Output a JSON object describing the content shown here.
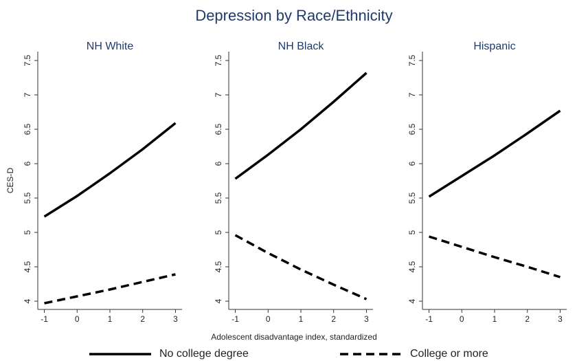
{
  "title": "Depression by Race/Ethnicity",
  "xlabel": "Adolescent disadvantage index, standardized",
  "chart_data": [
    {
      "type": "line",
      "title": "NH White",
      "ylabel": "CES-D",
      "x": [
        -1,
        0,
        1,
        2,
        3
      ],
      "xlim": [
        -1.2,
        3.2
      ],
      "xticks": [
        -1,
        0,
        1,
        2,
        3
      ],
      "ylim": [
        3.88,
        7.63
      ],
      "yticks": [
        4,
        4.5,
        5,
        5.5,
        6,
        6.5,
        7,
        7.5
      ],
      "series": [
        {
          "name": "No college degree",
          "color": "#000000",
          "style": "solid",
          "values": [
            5.23,
            5.53,
            5.86,
            6.21,
            6.59
          ]
        },
        {
          "name": "College or more",
          "color": "#000000",
          "style": "dashed",
          "values": [
            3.97,
            4.07,
            4.17,
            4.28,
            4.39
          ]
        }
      ]
    },
    {
      "type": "line",
      "title": "NH Black",
      "x": [
        -1,
        0,
        1,
        2,
        3
      ],
      "xlim": [
        -1.2,
        3.2
      ],
      "xticks": [
        -1,
        0,
        1,
        2,
        3
      ],
      "ylim": [
        3.88,
        7.63
      ],
      "yticks": [
        4,
        4.5,
        5,
        5.5,
        6,
        6.5,
        7,
        7.5
      ],
      "series": [
        {
          "name": "No college degree",
          "color": "#000000",
          "style": "solid",
          "values": [
            5.78,
            6.13,
            6.5,
            6.9,
            7.32
          ]
        },
        {
          "name": "College or more",
          "color": "#000000",
          "style": "dashed",
          "values": [
            4.96,
            4.7,
            4.46,
            4.24,
            4.03
          ]
        }
      ]
    },
    {
      "type": "line",
      "title": "Hispanic",
      "x": [
        -1,
        0,
        1,
        2,
        3
      ],
      "xlim": [
        -1.2,
        3.2
      ],
      "xticks": [
        -1,
        0,
        1,
        2,
        3
      ],
      "ylim": [
        3.88,
        7.63
      ],
      "yticks": [
        4,
        4.5,
        5,
        5.5,
        6,
        6.5,
        7,
        7.5
      ],
      "series": [
        {
          "name": "No college degree",
          "color": "#000000",
          "style": "solid",
          "values": [
            5.52,
            5.82,
            6.12,
            6.44,
            6.77
          ]
        },
        {
          "name": "College or more",
          "color": "#000000",
          "style": "dashed",
          "values": [
            4.94,
            4.79,
            4.64,
            4.5,
            4.35
          ]
        }
      ]
    }
  ]
}
